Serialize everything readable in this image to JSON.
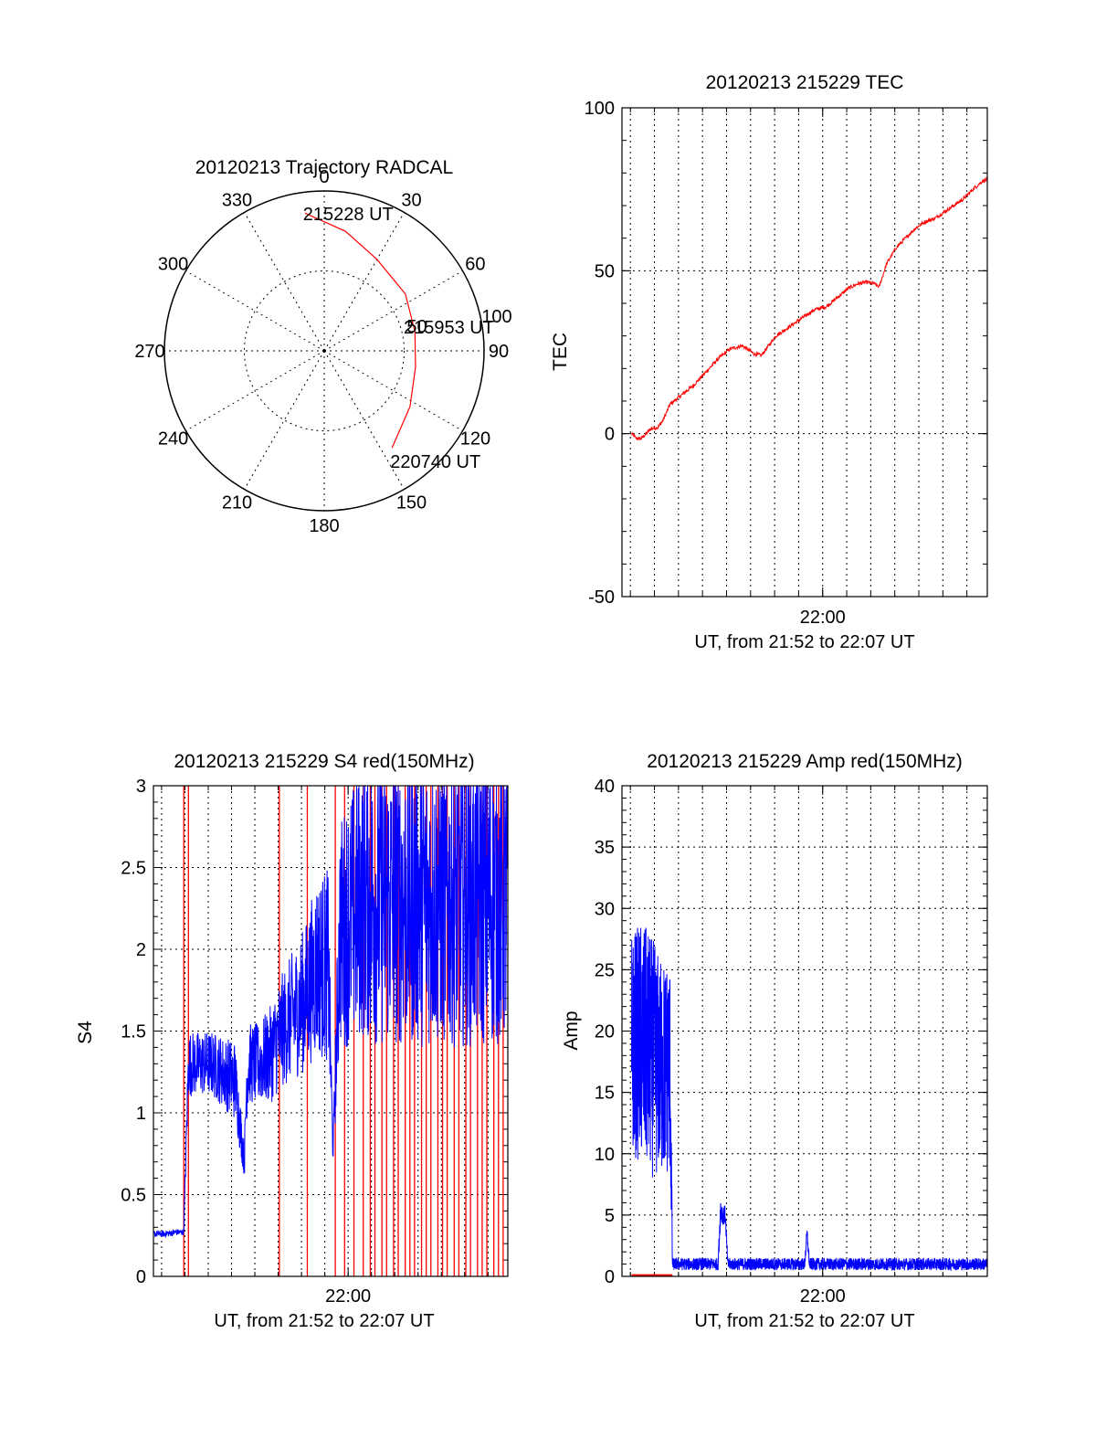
{
  "colors": {
    "red": "#ff0000",
    "blue": "#0000ff",
    "axis": "#000000"
  },
  "chart_data": [
    {
      "id": "trajectory",
      "type": "polar",
      "title": "20120213 Trajectory RADCAL",
      "angle_labels": [
        "0",
        "30",
        "60",
        "90",
        "120",
        "150",
        "180",
        "210",
        "240",
        "270",
        "300",
        "330"
      ],
      "radial_labels": [
        "50",
        "100"
      ],
      "rmax": 100,
      "track": {
        "color": "#ff0000",
        "points": [
          {
            "az": 352,
            "zen": 87
          },
          {
            "az": 10,
            "zen": 76
          },
          {
            "az": 30,
            "zen": 66
          },
          {
            "az": 55,
            "zen": 62
          },
          {
            "az": 78,
            "zen": 58
          },
          {
            "az": 100,
            "zen": 58
          },
          {
            "az": 123,
            "zen": 64
          },
          {
            "az": 145,
            "zen": 74
          }
        ]
      },
      "annotations": [
        {
          "text": "215228 UT",
          "az": 352,
          "zen": 87
        },
        {
          "text": "215953 UT",
          "az": 78,
          "zen": 52
        },
        {
          "text": "220740 UT",
          "az": 145,
          "zen": 74
        }
      ]
    },
    {
      "id": "tec",
      "type": "line",
      "title": "20120213 215229 TEC",
      "ylabel": "TEC",
      "xlabel": "UT, from 21:52 to 22:07 UT",
      "xlim": [
        0,
        15.2
      ],
      "ylim": [
        -50,
        100
      ],
      "yticks": [
        -50,
        0,
        50,
        100
      ],
      "xtick_label": "22:00",
      "xtick_pos": 8.35,
      "grid": true,
      "series": [
        {
          "color": "#ff0000",
          "noise": 0.6,
          "x": [
            0.4,
            0.6,
            0.8,
            1.2,
            1.5,
            1.7,
            2.0,
            2.5,
            3.0,
            3.5,
            4.0,
            4.5,
            5.0,
            5.5,
            5.8,
            6.1,
            6.4,
            6.8,
            7.2,
            7.6,
            8.0,
            8.5,
            9.0,
            9.4,
            9.8,
            10.2,
            10.5,
            10.7,
            11.0,
            11.4,
            11.8,
            12.2,
            12.6,
            13.0,
            13.4,
            13.8,
            14.2,
            14.6,
            15.0,
            15.2
          ],
          "y": [
            0,
            -1.5,
            -1.5,
            1.5,
            2,
            4,
            9,
            12,
            15,
            19,
            23,
            26,
            27,
            24.5,
            24,
            27,
            30,
            32,
            34,
            36,
            38,
            39,
            42,
            44.5,
            46,
            46.5,
            46,
            45,
            52,
            57,
            60,
            63,
            65,
            66,
            68,
            70,
            72,
            75,
            77.5,
            78
          ]
        }
      ]
    },
    {
      "id": "s4",
      "type": "line",
      "title": "20120213 215229 S4 red(150MHz)",
      "ylabel": "S4",
      "xlabel": "UT, from 21:52 to 22:07 UT",
      "xlim": [
        0,
        15.2
      ],
      "ylim": [
        0,
        3
      ],
      "yticks": [
        0,
        0.5,
        1,
        1.5,
        2,
        2.5,
        3
      ],
      "xtick_label": "22:00",
      "xtick_pos": 8.35,
      "grid": true,
      "series": [
        {
          "color": "#0000ff",
          "x": [
            0.0,
            0.5,
            1.0,
            1.3,
            1.5,
            2.0,
            2.5,
            3.0,
            3.5,
            3.9,
            4.0,
            4.1,
            4.5,
            5.0,
            5.5,
            6.0,
            6.5,
            7.0,
            7.5,
            7.7,
            8.0,
            8.5,
            9.0,
            9.5,
            10.0,
            10.5,
            11.0,
            11.5,
            12.0,
            12.5,
            13.0,
            13.5,
            14.0,
            14.5,
            15.2
          ],
          "center": [
            0.26,
            0.26,
            0.27,
            0.27,
            1.3,
            1.3,
            1.3,
            1.25,
            1.2,
            0.7,
            1.2,
            1.3,
            1.3,
            1.35,
            1.5,
            1.6,
            1.7,
            1.9,
            1.9,
            0.75,
            2.1,
            2.2,
            2.3,
            2.3,
            2.3,
            2.3,
            2.3,
            2.3,
            2.3,
            2.3,
            2.3,
            2.3,
            2.3,
            2.3,
            2.3
          ],
          "amplitude": [
            0.02,
            0.02,
            0.02,
            0.02,
            0.2,
            0.2,
            0.2,
            0.22,
            0.25,
            0.1,
            0.25,
            0.25,
            0.25,
            0.3,
            0.35,
            0.4,
            0.45,
            0.55,
            0.6,
            0.05,
            0.7,
            0.8,
            0.85,
            0.9,
            0.9,
            0.9,
            0.9,
            0.9,
            0.9,
            0.9,
            0.9,
            0.9,
            0.9,
            0.9,
            0.9
          ]
        },
        {
          "color": "#ff0000",
          "spikes_x": [
            1.3,
            1.5,
            5.4,
            6.6,
            7.8,
            8.2,
            8.6,
            9.0,
            9.3,
            9.5,
            9.8,
            10.0,
            10.3,
            10.5,
            10.8,
            11.0,
            11.2,
            11.5,
            11.7,
            11.9,
            12.2,
            12.4,
            12.6,
            12.9,
            13.1,
            13.4,
            13.6,
            13.9,
            14.1,
            14.3,
            14.6,
            14.8,
            15.0
          ]
        }
      ]
    },
    {
      "id": "amp",
      "type": "line",
      "title": "20120213 215229 Amp red(150MHz)",
      "ylabel": "Amp",
      "xlabel": "UT, from 21:52 to 22:07 UT",
      "xlim": [
        0,
        15.2
      ],
      "ylim": [
        0,
        40
      ],
      "yticks": [
        0,
        5,
        10,
        15,
        20,
        25,
        30,
        35,
        40
      ],
      "xtick_label": "22:00",
      "xtick_pos": 8.35,
      "grid": true,
      "series": [
        {
          "color": "#0000ff",
          "x": [
            0.4,
            0.8,
            1.2,
            1.6,
            2.0,
            2.1,
            2.2,
            4.0,
            4.1,
            4.2,
            4.3,
            4.4,
            4.6,
            7.6,
            7.7,
            7.8,
            10.0,
            12.0,
            15.2
          ],
          "center": [
            19,
            19,
            18,
            17,
            17,
            1.0,
            1.0,
            1.0,
            5.5,
            5.0,
            5.0,
            1.0,
            1.0,
            1.0,
            3.5,
            1.0,
            1.0,
            1.0,
            1.0
          ],
          "amplitude": [
            9,
            10,
            10,
            9,
            9,
            0.5,
            0.5,
            0.5,
            1.2,
            0.8,
            0.8,
            0.5,
            0.5,
            0.5,
            0.6,
            0.5,
            0.5,
            0.5,
            0.5
          ]
        },
        {
          "color": "#ff0000",
          "x": [
            0.4,
            2.1
          ],
          "y": [
            0.1,
            0.1
          ]
        }
      ]
    }
  ]
}
